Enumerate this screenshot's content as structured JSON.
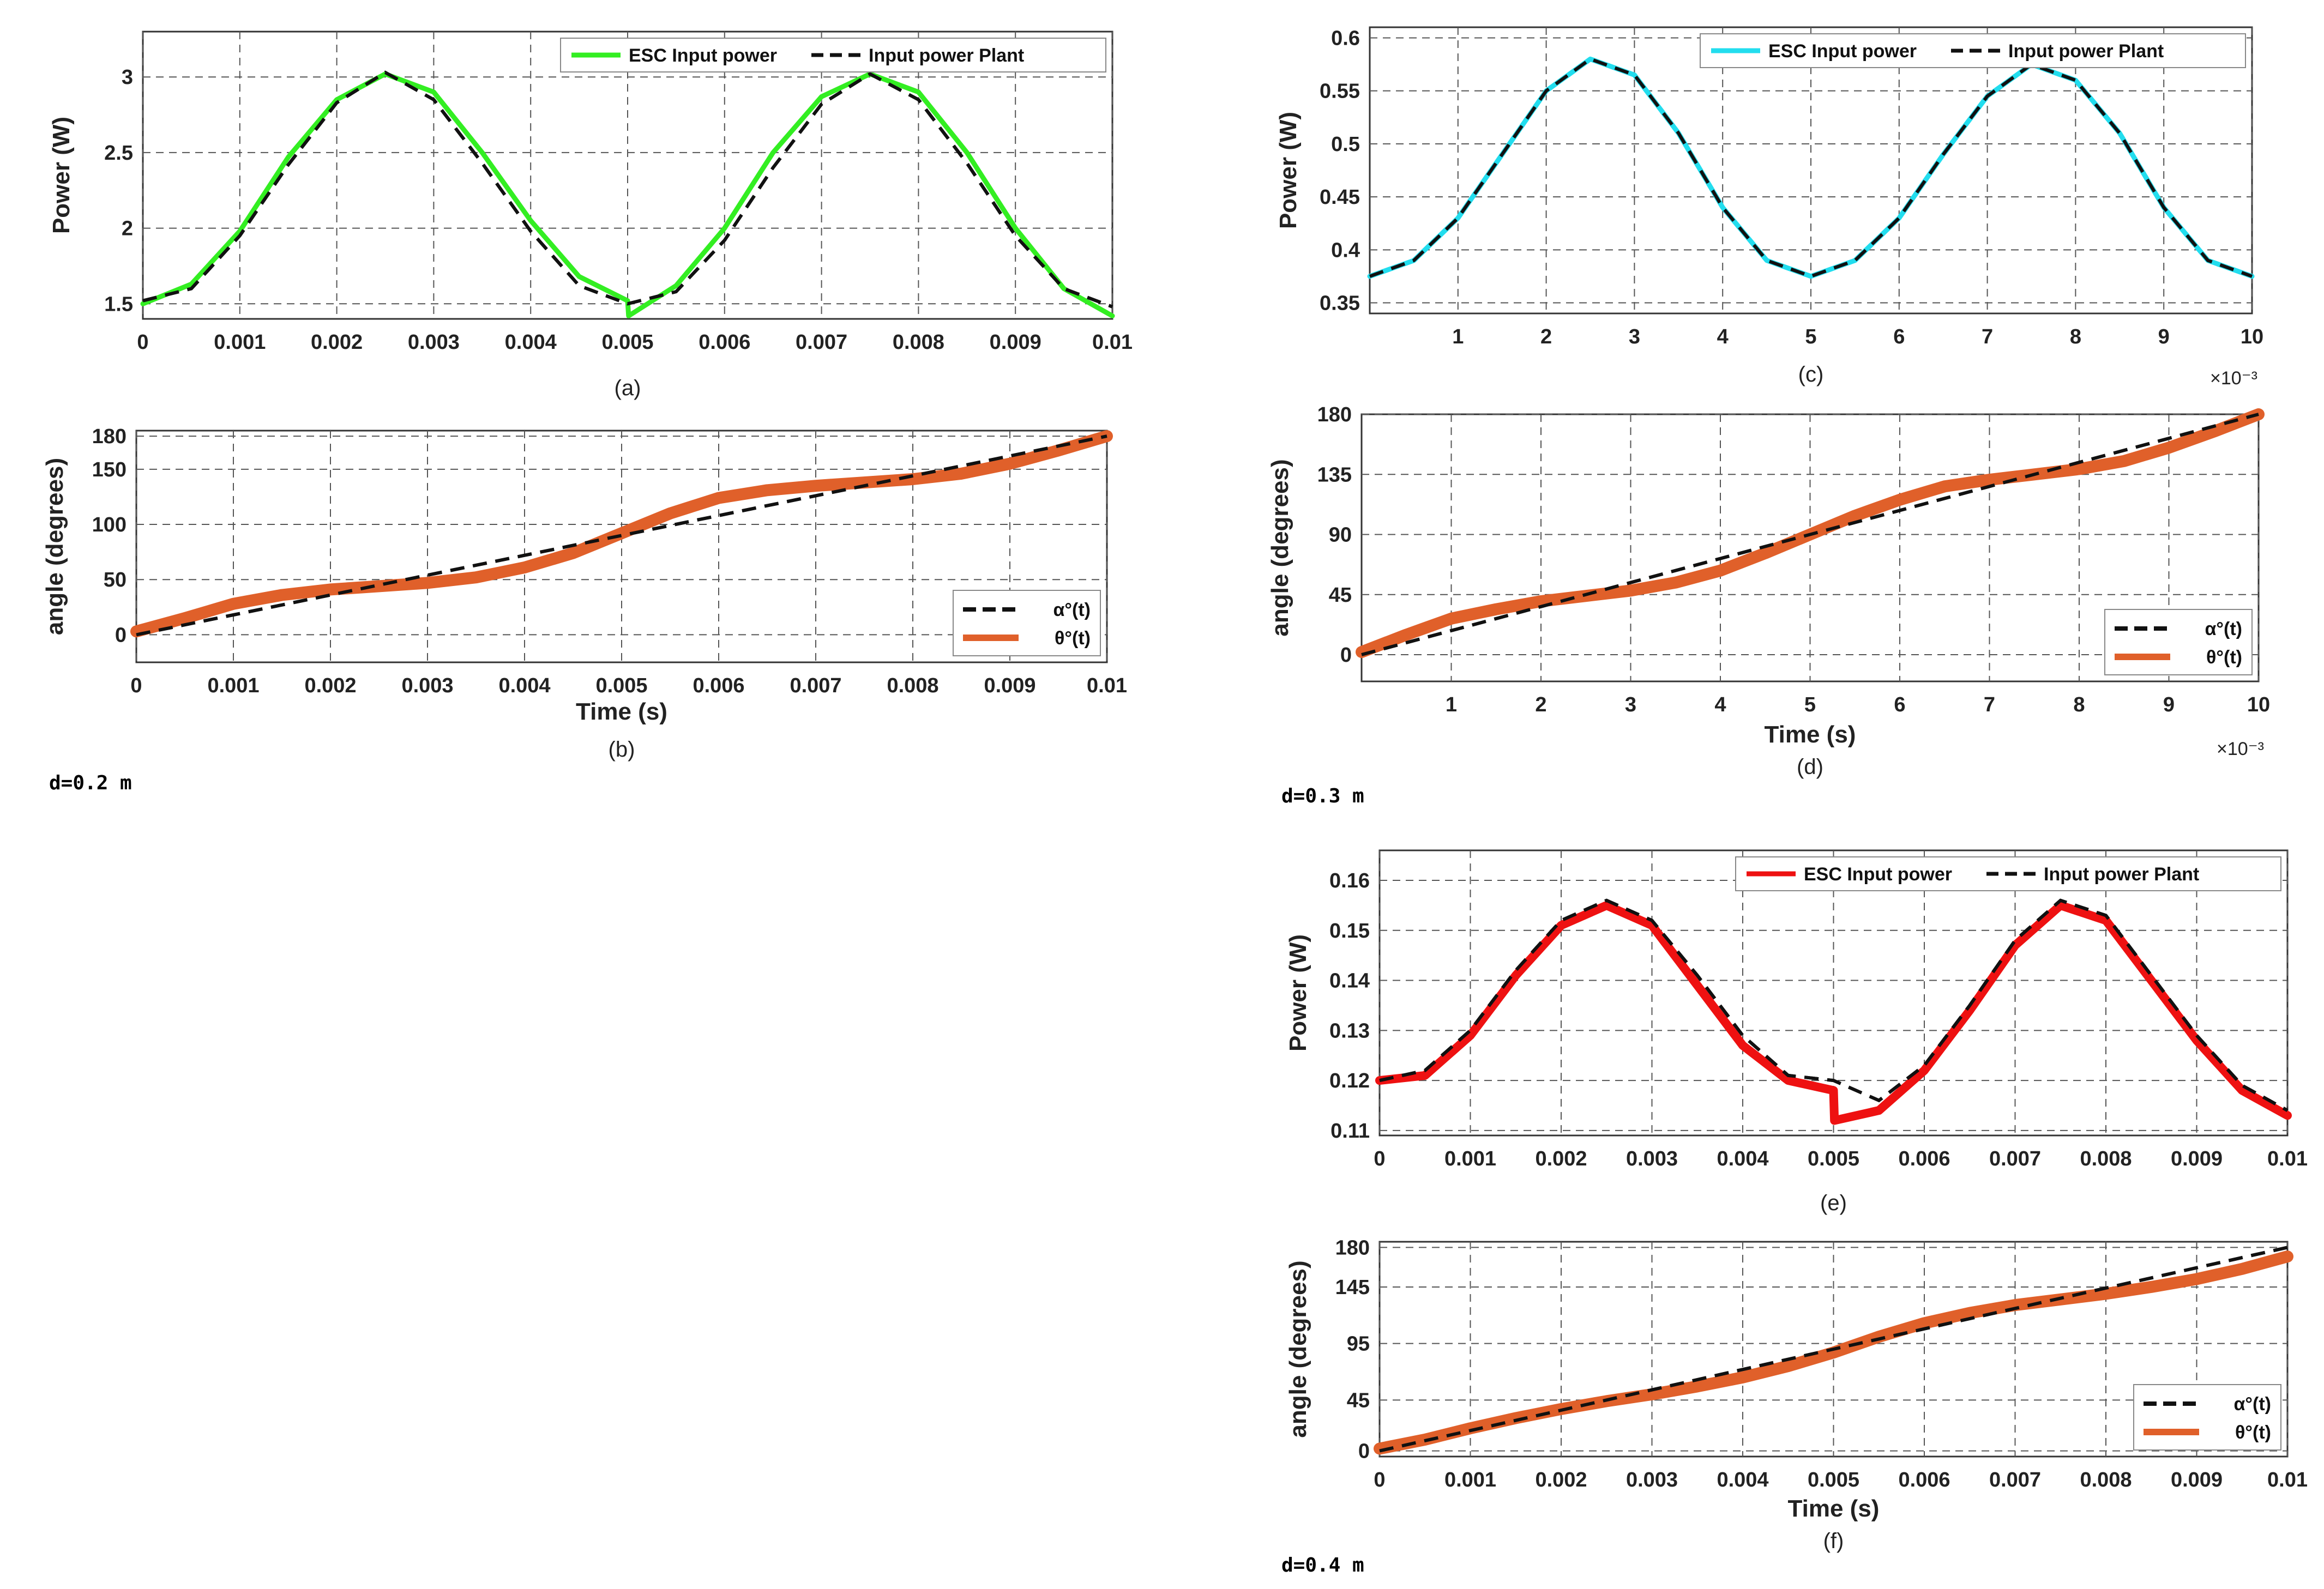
{
  "figure": {
    "d_labels": [
      {
        "id": "d1",
        "text": "d=0.2 m"
      },
      {
        "id": "d2",
        "text": "d=0.3 m"
      },
      {
        "id": "d3",
        "text": "d=0.4 m"
      }
    ]
  },
  "chart_data": [
    {
      "id": "a",
      "type": "line",
      "caption": "(a)",
      "xlabel": "",
      "ylabel": "Power (W)",
      "xlim": [
        0,
        0.01
      ],
      "ylim": [
        1.4,
        3.3
      ],
      "xticks": [
        0,
        0.001,
        0.002,
        0.003,
        0.004,
        0.005,
        0.006,
        0.007,
        0.008,
        0.009,
        0.01
      ],
      "xtick_labels": [
        "0",
        "0.001",
        "0.002",
        "0.003",
        "0.004",
        "0.005",
        "0.006",
        "0.007",
        "0.008",
        "0.009",
        "0.01"
      ],
      "yticks": [
        1.5,
        2,
        2.5,
        3
      ],
      "ytick_labels": [
        "1.5",
        "2",
        "2.5",
        "3"
      ],
      "grid": true,
      "legend_position": "top-right",
      "legend_layout": "horizontal",
      "series": [
        {
          "name": "ESC Input power",
          "color": "#33ee22",
          "style": "solid",
          "x": [
            0,
            0.0005,
            0.001,
            0.0015,
            0.002,
            0.0025,
            0.003,
            0.0035,
            0.004,
            0.0045,
            0.005,
            0.00501,
            0.0055,
            0.006,
            0.0065,
            0.007,
            0.0075,
            0.008,
            0.0085,
            0.009,
            0.0095,
            0.01
          ],
          "values": [
            1.5,
            1.63,
            1.98,
            2.47,
            2.85,
            3.02,
            2.9,
            2.5,
            2.05,
            1.68,
            1.52,
            1.42,
            1.62,
            2.0,
            2.5,
            2.87,
            3.02,
            2.9,
            2.5,
            2.0,
            1.6,
            1.42
          ]
        },
        {
          "name": "Input power Plant",
          "color": "#111111",
          "style": "dashed",
          "x": [
            0,
            0.0005,
            0.001,
            0.0015,
            0.002,
            0.0025,
            0.003,
            0.0035,
            0.004,
            0.0045,
            0.005,
            0.0055,
            0.006,
            0.0065,
            0.007,
            0.0075,
            0.008,
            0.0085,
            0.009,
            0.0095,
            0.01
          ],
          "values": [
            1.52,
            1.6,
            1.95,
            2.42,
            2.83,
            3.03,
            2.85,
            2.43,
            1.98,
            1.62,
            1.5,
            1.58,
            1.92,
            2.4,
            2.82,
            3.02,
            2.85,
            2.43,
            1.95,
            1.6,
            1.48
          ]
        }
      ]
    },
    {
      "id": "b",
      "type": "line",
      "caption": "(b)",
      "xlabel": "Time (s)",
      "ylabel": "angle (degrees)",
      "xlim": [
        0,
        0.01
      ],
      "ylim": [
        -25,
        185
      ],
      "xticks": [
        0,
        0.001,
        0.002,
        0.003,
        0.004,
        0.005,
        0.006,
        0.007,
        0.008,
        0.009,
        0.01
      ],
      "xtick_labels": [
        "0",
        "0.001",
        "0.002",
        "0.003",
        "0.004",
        "0.005",
        "0.006",
        "0.007",
        "0.008",
        "0.009",
        "0.01"
      ],
      "yticks": [
        0,
        50,
        100,
        150,
        180
      ],
      "ytick_labels": [
        "0",
        "50",
        "100",
        "150",
        "180"
      ],
      "grid": true,
      "legend_position": "bottom-right",
      "legend_layout": "vertical",
      "series": [
        {
          "name": "α°(t)",
          "color": "#111111",
          "style": "dashed",
          "x": [
            0,
            0.001,
            0.002,
            0.003,
            0.004,
            0.005,
            0.006,
            0.007,
            0.008,
            0.009,
            0.01
          ],
          "values": [
            0,
            18,
            36,
            54,
            72,
            90,
            108,
            126,
            144,
            162,
            180
          ]
        },
        {
          "name": "θ°(t)",
          "color": "#e0602a",
          "style": "thick",
          "x": [
            0,
            0.0005,
            0.001,
            0.0015,
            0.002,
            0.0025,
            0.003,
            0.0035,
            0.004,
            0.0045,
            0.005,
            0.0055,
            0.006,
            0.0065,
            0.007,
            0.0075,
            0.008,
            0.0085,
            0.009,
            0.0095,
            0.01
          ],
          "values": [
            3,
            15,
            28,
            36,
            41,
            44,
            47,
            52,
            61,
            74,
            92,
            110,
            124,
            131,
            135,
            138,
            141,
            146,
            155,
            167,
            180
          ]
        }
      ]
    },
    {
      "id": "c",
      "type": "line",
      "caption": "(c)",
      "xlabel": "",
      "ylabel": "Power (W)",
      "x_multiplier": "×10⁻³",
      "xlim": [
        0,
        10
      ],
      "ylim": [
        0.34,
        0.61
      ],
      "xticks": [
        1,
        2,
        3,
        4,
        5,
        6,
        7,
        8,
        9,
        10
      ],
      "xtick_labels": [
        "1",
        "2",
        "3",
        "4",
        "5",
        "6",
        "7",
        "8",
        "9",
        "10"
      ],
      "yticks": [
        0.35,
        0.4,
        0.45,
        0.5,
        0.55,
        0.6
      ],
      "ytick_labels": [
        "0.35",
        "0.4",
        "0.45",
        "0.5",
        "0.55",
        "0.6"
      ],
      "grid": true,
      "legend_position": "top-right",
      "legend_layout": "horizontal",
      "series": [
        {
          "name": "ESC Input power",
          "color": "#22ddee",
          "style": "solid",
          "x": [
            0,
            0.5,
            1,
            1.5,
            2,
            2.5,
            3,
            3.5,
            4,
            4.5,
            5,
            5.5,
            6,
            6.5,
            7,
            7.5,
            8,
            8.5,
            9,
            9.5,
            10
          ],
          "values": [
            0.375,
            0.39,
            0.43,
            0.49,
            0.55,
            0.58,
            0.565,
            0.51,
            0.44,
            0.39,
            0.375,
            0.39,
            0.43,
            0.49,
            0.545,
            0.575,
            0.56,
            0.51,
            0.44,
            0.39,
            0.375
          ]
        },
        {
          "name": "Input power Plant",
          "color": "#111111",
          "style": "dashed",
          "x": [
            0,
            0.5,
            1,
            1.5,
            2,
            2.5,
            3,
            3.5,
            4,
            4.5,
            5,
            5.5,
            6,
            6.5,
            7,
            7.5,
            8,
            8.5,
            9,
            9.5,
            10
          ],
          "values": [
            0.375,
            0.39,
            0.43,
            0.49,
            0.55,
            0.58,
            0.565,
            0.51,
            0.44,
            0.39,
            0.375,
            0.39,
            0.43,
            0.49,
            0.545,
            0.575,
            0.56,
            0.51,
            0.44,
            0.39,
            0.375
          ]
        }
      ]
    },
    {
      "id": "d",
      "type": "line",
      "caption": "(d)",
      "xlabel": "Time (s)",
      "ylabel": "angle (degrees)",
      "x_multiplier": "×10⁻³",
      "xlim": [
        0,
        10
      ],
      "ylim": [
        -20,
        180
      ],
      "xticks": [
        1,
        2,
        3,
        4,
        5,
        6,
        7,
        8,
        9,
        10
      ],
      "xtick_labels": [
        "1",
        "2",
        "3",
        "4",
        "5",
        "6",
        "7",
        "8",
        "9",
        "10"
      ],
      "yticks": [
        0,
        45,
        90,
        135,
        180
      ],
      "ytick_labels": [
        "0",
        "45",
        "90",
        "135",
        "180"
      ],
      "grid": true,
      "legend_position": "bottom-right",
      "legend_layout": "vertical",
      "series": [
        {
          "name": "α°(t)",
          "color": "#111111",
          "style": "dashed",
          "x": [
            0,
            1,
            2,
            3,
            4,
            5,
            6,
            7,
            8,
            9,
            10
          ],
          "values": [
            0,
            18,
            36,
            54,
            72,
            90,
            108,
            126,
            144,
            162,
            180
          ]
        },
        {
          "name": "θ°(t)",
          "color": "#e0602a",
          "style": "thick",
          "x": [
            0,
            0.5,
            1,
            1.5,
            2,
            2.5,
            3,
            3.5,
            4,
            4.5,
            5,
            5.5,
            6,
            6.5,
            7,
            7.5,
            8,
            8.5,
            9,
            9.5,
            10
          ],
          "values": [
            2,
            15,
            27,
            34,
            40,
            44,
            48,
            54,
            63,
            76,
            90,
            104,
            116,
            126,
            131,
            135,
            139,
            145,
            155,
            167,
            180
          ]
        }
      ]
    },
    {
      "id": "e",
      "type": "line",
      "caption": "(e)",
      "xlabel": "",
      "ylabel": "Power (W)",
      "xlim": [
        0,
        0.01
      ],
      "ylim": [
        0.109,
        0.166
      ],
      "xticks": [
        0,
        0.001,
        0.002,
        0.003,
        0.004,
        0.005,
        0.006,
        0.007,
        0.008,
        0.009,
        0.01
      ],
      "xtick_labels": [
        "0",
        "0.001",
        "0.002",
        "0.003",
        "0.004",
        "0.005",
        "0.006",
        "0.007",
        "0.008",
        "0.009",
        "0.01"
      ],
      "yticks": [
        0.11,
        0.12,
        0.13,
        0.14,
        0.15,
        0.16
      ],
      "ytick_labels": [
        "0.11",
        "0.12",
        "0.13",
        "0.14",
        "0.15",
        "0.16"
      ],
      "grid": true,
      "legend_position": "top-right",
      "legend_layout": "horizontal",
      "series": [
        {
          "name": "ESC Input power",
          "color": "#ee1111",
          "style": "thick-red",
          "x": [
            0,
            0.0005,
            0.001,
            0.0015,
            0.002,
            0.0025,
            0.003,
            0.0035,
            0.004,
            0.0045,
            0.005,
            0.00501,
            0.0055,
            0.006,
            0.0065,
            0.007,
            0.0075,
            0.008,
            0.0085,
            0.009,
            0.0095,
            0.01
          ],
          "values": [
            0.12,
            0.121,
            0.129,
            0.141,
            0.151,
            0.155,
            0.151,
            0.139,
            0.127,
            0.12,
            0.118,
            0.112,
            0.114,
            0.122,
            0.134,
            0.147,
            0.155,
            0.152,
            0.14,
            0.128,
            0.118,
            0.113
          ]
        },
        {
          "name": "Input power Plant",
          "color": "#111111",
          "style": "dashed",
          "x": [
            0,
            0.0005,
            0.001,
            0.0015,
            0.002,
            0.0025,
            0.003,
            0.0035,
            0.004,
            0.0045,
            0.005,
            0.0055,
            0.006,
            0.0065,
            0.007,
            0.0075,
            0.008,
            0.0085,
            0.009,
            0.0095,
            0.01
          ],
          "values": [
            0.12,
            0.122,
            0.13,
            0.142,
            0.152,
            0.156,
            0.152,
            0.141,
            0.129,
            0.121,
            0.12,
            0.116,
            0.123,
            0.135,
            0.148,
            0.156,
            0.153,
            0.141,
            0.129,
            0.119,
            0.114
          ]
        }
      ]
    },
    {
      "id": "f",
      "type": "line",
      "caption": "(f)",
      "xlabel": "Time (s)",
      "ylabel": "angle (degrees)",
      "xlim": [
        0,
        0.01
      ],
      "ylim": [
        -5,
        185
      ],
      "xticks": [
        0,
        0.001,
        0.002,
        0.003,
        0.004,
        0.005,
        0.006,
        0.007,
        0.008,
        0.009,
        0.01
      ],
      "xtick_labels": [
        "0",
        "0.001",
        "0.002",
        "0.003",
        "0.004",
        "0.005",
        "0.006",
        "0.007",
        "0.008",
        "0.009",
        "0.01"
      ],
      "yticks": [
        0,
        45,
        95,
        145,
        180
      ],
      "ytick_labels": [
        "0",
        "45",
        "95",
        "145",
        "180"
      ],
      "grid": true,
      "legend_position": "bottom-right",
      "legend_layout": "vertical",
      "series": [
        {
          "name": "α°(t)",
          "color": "#111111",
          "style": "dashed",
          "x": [
            0,
            0.001,
            0.002,
            0.003,
            0.004,
            0.005,
            0.006,
            0.007,
            0.008,
            0.009,
            0.01
          ],
          "values": [
            0,
            18,
            36,
            54,
            72,
            90,
            108,
            126,
            144,
            162,
            180
          ]
        },
        {
          "name": "θ°(t)",
          "color": "#e0602a",
          "style": "thick",
          "x": [
            0,
            0.0005,
            0.001,
            0.0015,
            0.002,
            0.0025,
            0.003,
            0.0035,
            0.004,
            0.0045,
            0.005,
            0.0055,
            0.006,
            0.0065,
            0.007,
            0.0075,
            0.008,
            0.0085,
            0.009,
            0.0095,
            0.01
          ],
          "values": [
            2,
            10,
            20,
            29,
            37,
            44,
            50,
            57,
            65,
            75,
            87,
            101,
            113,
            122,
            129,
            134,
            139,
            145,
            152,
            161,
            172
          ]
        }
      ]
    }
  ]
}
